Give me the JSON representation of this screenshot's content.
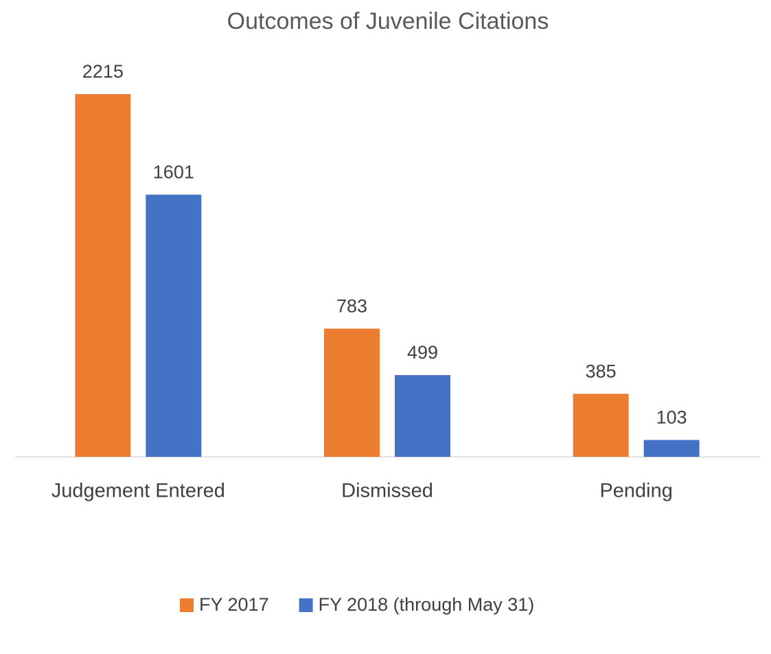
{
  "chart_data": {
    "type": "bar",
    "title": "Outcomes of Juvenile Citations",
    "categories": [
      "Judgement Entered",
      "Dismissed",
      "Pending"
    ],
    "series": [
      {
        "name": "FY 2017",
        "color": "#ed7d31",
        "values": [
          2215,
          783,
          385
        ]
      },
      {
        "name": "FY 2018 (through May 31)",
        "color": "#4472c4",
        "values": [
          1601,
          499,
          103
        ]
      }
    ],
    "legend": "bottom"
  }
}
